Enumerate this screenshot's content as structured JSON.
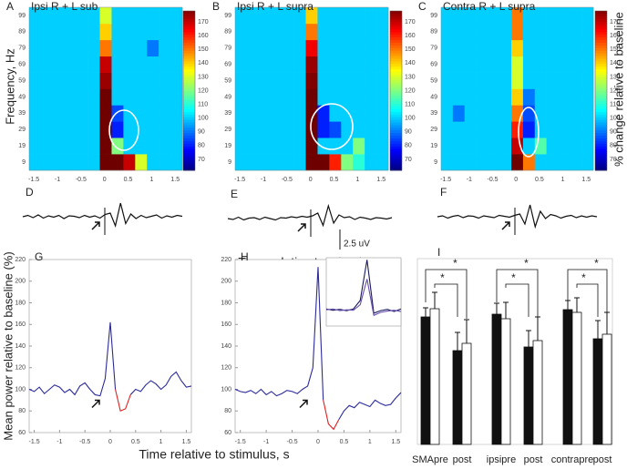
{
  "chart_data": [
    {
      "type": "heatmap",
      "panel": "A",
      "title": "Ipsi R + L sub",
      "y_label": "Frequency, Hz",
      "x_edges": [
        -1.6,
        -1.35,
        -1.1,
        -0.85,
        -0.6,
        -0.35,
        -0.1,
        0.15,
        0.4,
        0.65,
        0.9,
        1.15,
        1.4,
        1.65
      ],
      "y_edges": [
        4,
        14,
        24,
        34,
        44,
        54,
        64,
        74,
        84,
        94,
        104
      ],
      "xlim": [
        -1.6,
        1.65
      ],
      "ylim": [
        4,
        104
      ],
      "xticks": [
        -1.5,
        -1,
        -0.5,
        0,
        0.5,
        1,
        1.5
      ],
      "yticks": [
        9,
        19,
        29,
        39,
        49,
        59,
        69,
        79,
        89,
        99
      ],
      "zlim": [
        62,
        178
      ],
      "colorbar_ticks": [
        70,
        80,
        90,
        100,
        110,
        120,
        130,
        140,
        150,
        160,
        170
      ],
      "z": [
        [
          100,
          100,
          100,
          100,
          100,
          100,
          180,
          180,
          170,
          130,
          100,
          100,
          100
        ],
        [
          100,
          100,
          100,
          100,
          100,
          100,
          180,
          120,
          100,
          100,
          100,
          100,
          100
        ],
        [
          100,
          100,
          100,
          100,
          100,
          100,
          180,
          80,
          100,
          100,
          100,
          100,
          100
        ],
        [
          100,
          100,
          100,
          100,
          100,
          100,
          180,
          85,
          100,
          100,
          100,
          100,
          100
        ],
        [
          100,
          100,
          100,
          100,
          100,
          100,
          180,
          100,
          100,
          100,
          100,
          100,
          100
        ],
        [
          100,
          100,
          100,
          100,
          100,
          100,
          175,
          100,
          100,
          100,
          100,
          100,
          100
        ],
        [
          100,
          100,
          100,
          100,
          100,
          100,
          170,
          100,
          100,
          100,
          100,
          100,
          100
        ],
        [
          100,
          100,
          100,
          100,
          100,
          100,
          150,
          100,
          100,
          100,
          90,
          100,
          100
        ],
        [
          100,
          100,
          100,
          100,
          100,
          100,
          140,
          100,
          100,
          100,
          100,
          100,
          100
        ],
        [
          100,
          100,
          100,
          100,
          100,
          100,
          130,
          100,
          100,
          100,
          100,
          100,
          100
        ]
      ]
    },
    {
      "type": "heatmap",
      "panel": "B",
      "title": "Ipsi R + L supra",
      "x_edges": [
        -1.6,
        -1.35,
        -1.1,
        -0.85,
        -0.6,
        -0.35,
        -0.1,
        0.15,
        0.4,
        0.65,
        0.9,
        1.15,
        1.4,
        1.65
      ],
      "y_edges": [
        4,
        14,
        24,
        34,
        44,
        54,
        64,
        74,
        84,
        94,
        104
      ],
      "xlim": [
        -1.6,
        1.65
      ],
      "ylim": [
        4,
        104
      ],
      "xticks": [
        -1.5,
        -1,
        -0.5,
        0,
        0.5,
        1,
        1.5
      ],
      "yticks": [
        9,
        19,
        29,
        39,
        49,
        59,
        69,
        79,
        89,
        99
      ],
      "zlim": [
        62,
        178
      ],
      "colorbar_ticks": [
        70,
        80,
        90,
        100,
        110,
        120,
        130,
        140,
        150,
        160,
        170
      ],
      "z": [
        [
          100,
          100,
          100,
          100,
          100,
          100,
          180,
          180,
          160,
          120,
          110,
          100,
          100
        ],
        [
          100,
          100,
          100,
          100,
          100,
          100,
          180,
          100,
          100,
          100,
          120,
          100,
          100
        ],
        [
          100,
          100,
          100,
          100,
          100,
          100,
          180,
          80,
          85,
          100,
          100,
          100,
          100
        ],
        [
          100,
          100,
          100,
          100,
          100,
          100,
          180,
          80,
          100,
          100,
          100,
          100,
          100
        ],
        [
          100,
          100,
          100,
          100,
          100,
          100,
          180,
          100,
          100,
          100,
          100,
          100,
          100
        ],
        [
          100,
          100,
          100,
          100,
          100,
          100,
          178,
          100,
          100,
          100,
          100,
          100,
          100
        ],
        [
          100,
          100,
          100,
          100,
          100,
          100,
          175,
          100,
          100,
          100,
          100,
          100,
          100
        ],
        [
          100,
          100,
          100,
          100,
          100,
          100,
          165,
          100,
          100,
          100,
          100,
          100,
          100
        ],
        [
          100,
          100,
          100,
          100,
          100,
          100,
          150,
          100,
          100,
          100,
          100,
          100,
          100
        ],
        [
          100,
          100,
          100,
          100,
          100,
          100,
          140,
          100,
          100,
          100,
          100,
          100,
          100
        ]
      ]
    },
    {
      "type": "heatmap",
      "panel": "C",
      "title": "Contra R + L supra",
      "colorbar_label": "% change relative to baseline",
      "x_edges": [
        -1.6,
        -1.35,
        -1.1,
        -0.85,
        -0.6,
        -0.35,
        -0.1,
        0.15,
        0.4,
        0.65,
        0.9,
        1.15,
        1.4,
        1.65
      ],
      "y_edges": [
        4,
        14,
        24,
        34,
        44,
        54,
        64,
        74,
        84,
        94,
        104
      ],
      "xlim": [
        -1.6,
        1.65
      ],
      "ylim": [
        4,
        104
      ],
      "xticks": [
        -1.5,
        -1,
        -0.5,
        0,
        0.5,
        1,
        1.5
      ],
      "yticks": [
        9,
        19,
        29,
        39,
        49,
        59,
        69,
        79,
        89,
        99
      ],
      "zlim": [
        62,
        178
      ],
      "colorbar_ticks": [
        70,
        80,
        90,
        100,
        110,
        120,
        130,
        140,
        150,
        160,
        170
      ],
      "z": [
        [
          100,
          100,
          100,
          100,
          100,
          100,
          180,
          150,
          100,
          100,
          100,
          100,
          100
        ],
        [
          100,
          100,
          100,
          100,
          100,
          100,
          170,
          100,
          115,
          100,
          100,
          100,
          100
        ],
        [
          100,
          100,
          100,
          100,
          100,
          100,
          160,
          80,
          100,
          100,
          100,
          100,
          100
        ],
        [
          100,
          90,
          100,
          100,
          100,
          100,
          150,
          85,
          100,
          100,
          100,
          100,
          100
        ],
        [
          100,
          100,
          100,
          100,
          100,
          100,
          140,
          90,
          100,
          100,
          100,
          100,
          100
        ],
        [
          100,
          100,
          100,
          100,
          100,
          100,
          130,
          100,
          100,
          100,
          100,
          100,
          100
        ],
        [
          100,
          100,
          100,
          100,
          100,
          100,
          130,
          100,
          100,
          100,
          100,
          100,
          100
        ],
        [
          100,
          100,
          100,
          100,
          100,
          100,
          140,
          100,
          100,
          100,
          100,
          100,
          100
        ],
        [
          100,
          100,
          100,
          100,
          100,
          100,
          150,
          100,
          100,
          100,
          100,
          100,
          100
        ],
        [
          100,
          100,
          100,
          100,
          100,
          100,
          150,
          100,
          100,
          100,
          100,
          100,
          100
        ]
      ]
    },
    {
      "type": "trace",
      "panel": "D",
      "ylim": [
        -5,
        5
      ],
      "values": [
        0,
        0.3,
        -0.2,
        0.4,
        -0.3,
        0.2,
        -0.1,
        0.3,
        -0.4,
        0.2,
        0.1,
        -0.2,
        0.3,
        -0.1,
        0.2,
        -0.3,
        0.5,
        0.8,
        -2,
        3,
        -1.5,
        0.6,
        -0.4,
        0.3,
        -0.2,
        0.1,
        0.4,
        -0.3,
        0.2,
        -0.1,
        0.3,
        0.1
      ]
    },
    {
      "type": "trace",
      "panel": "E",
      "ylim": [
        -5,
        5
      ],
      "scale_label": "2.5 uV",
      "x_label": "Time relative to stimulus, s",
      "values": [
        0,
        -0.2,
        0.3,
        -0.3,
        0.1,
        0.2,
        -0.2,
        0.3,
        0,
        -0.3,
        0.2,
        0.1,
        0.4,
        0.2,
        0.5,
        0.3,
        0.6,
        1.2,
        -1.5,
        2.8,
        -1,
        0.8,
        0.2,
        0.4,
        -0.2,
        0.3,
        0.1,
        -0.2,
        0.2,
        0.1,
        -0.1,
        0.2
      ]
    },
    {
      "type": "trace",
      "panel": "F",
      "ylim": [
        -5,
        5
      ],
      "values": [
        0,
        0.2,
        -0.3,
        0.1,
        0.3,
        -0.2,
        0.2,
        0.1,
        -0.3,
        0.2,
        0,
        -0.2,
        0.3,
        0.1,
        -0.1,
        0.3,
        0.6,
        -1.6,
        2.6,
        -2.2,
        1.2,
        -0.4,
        0.5,
        0.2,
        -0.3,
        0.1,
        0.3,
        -0.2,
        0.2,
        -0.1,
        0.2,
        0
      ]
    },
    {
      "type": "line",
      "panel": "G",
      "y_label": "Mean power relative to baseline (%)",
      "x_label": "Time relative to stimulus, s",
      "xlim": [
        -1.6,
        1.6
      ],
      "ylim": [
        60,
        220
      ],
      "xticks": [
        -1.5,
        -1,
        -0.5,
        0,
        0.5,
        1,
        1.5
      ],
      "yticks": [
        60,
        80,
        100,
        120,
        140,
        160,
        180,
        200,
        220
      ],
      "x": [
        -1.6,
        -1.5,
        -1.4,
        -1.3,
        -1.2,
        -1.1,
        -1.0,
        -0.9,
        -0.8,
        -0.7,
        -0.6,
        -0.5,
        -0.4,
        -0.3,
        -0.2,
        -0.1,
        0.0,
        0.1,
        0.2,
        0.3,
        0.4,
        0.5,
        0.6,
        0.7,
        0.8,
        0.9,
        1.0,
        1.1,
        1.2,
        1.3,
        1.4,
        1.5,
        1.6
      ],
      "series": [
        {
          "color": "#2b2b9a",
          "values": [
            100,
            98,
            102,
            96,
            100,
            104,
            102,
            97,
            100,
            95,
            103,
            106,
            100,
            95,
            94,
            110,
            162,
            100,
            null,
            null,
            95,
            100,
            98,
            104,
            108,
            105,
            100,
            104,
            112,
            116,
            108,
            102,
            103
          ]
        },
        {
          "color": "#e02020",
          "values": [
            null,
            null,
            null,
            null,
            null,
            null,
            null,
            null,
            null,
            null,
            null,
            null,
            null,
            null,
            null,
            null,
            null,
            100,
            80,
            82,
            95,
            null,
            null,
            null,
            null,
            null,
            null,
            null,
            null,
            null,
            null,
            null,
            null
          ]
        }
      ]
    },
    {
      "type": "line",
      "panel": "H",
      "xlim": [
        -1.6,
        1.6
      ],
      "ylim": [
        60,
        220
      ],
      "xticks": [
        -1.5,
        -1,
        -0.5,
        0,
        0.5,
        1,
        1.5
      ],
      "yticks": [
        60,
        80,
        100,
        120,
        140,
        160,
        180,
        200,
        220
      ],
      "x": [
        -1.6,
        -1.5,
        -1.4,
        -1.3,
        -1.2,
        -1.1,
        -1.0,
        -0.9,
        -0.8,
        -0.7,
        -0.6,
        -0.5,
        -0.4,
        -0.3,
        -0.2,
        -0.1,
        0.0,
        0.1,
        0.2,
        0.3,
        0.4,
        0.5,
        0.6,
        0.7,
        0.8,
        0.9,
        1.0,
        1.1,
        1.2,
        1.3,
        1.4,
        1.5,
        1.6
      ],
      "series": [
        {
          "color": "#2b2b9a",
          "values": [
            100,
            98,
            97,
            99,
            96,
            100,
            95,
            98,
            94,
            96,
            99,
            98,
            96,
            100,
            103,
            120,
            213,
            90,
            null,
            null,
            72,
            80,
            85,
            83,
            88,
            86,
            84,
            90,
            87,
            85,
            86,
            92,
            97
          ]
        },
        {
          "color": "#e02020",
          "values": [
            null,
            null,
            null,
            null,
            null,
            null,
            null,
            null,
            null,
            null,
            null,
            null,
            null,
            null,
            null,
            null,
            null,
            90,
            68,
            63,
            72,
            null,
            null,
            null,
            null,
            null,
            null,
            null,
            null,
            null,
            null,
            null,
            null
          ]
        }
      ]
    },
    {
      "type": "line",
      "inset": true,
      "xlim": [
        0,
        11
      ],
      "ylim": [
        60,
        220
      ],
      "x": [
        0,
        1,
        2,
        3,
        4,
        5,
        6,
        7,
        8,
        9,
        10,
        11
      ],
      "series": [
        {
          "color": "#1a1a5e",
          "values": [
            100,
            97,
            99,
            96,
            100,
            120,
            215,
            90,
            96,
            99,
            94,
            100
          ]
        },
        {
          "color": "#6a4fb0",
          "values": [
            98,
            100,
            96,
            98,
            97,
            110,
            170,
            85,
            92,
            95,
            97,
            94
          ]
        }
      ]
    },
    {
      "type": "bar",
      "panel": "I",
      "ylim": [
        0,
        100
      ],
      "categories": [
        "SMApre",
        "post",
        "ipsipre",
        "post",
        "contrapre",
        "post"
      ],
      "series": [
        {
          "color": "#111111",
          "values": [
            70,
            51.5,
            71.5,
            53.5,
            74,
            58
          ],
          "errors": [
            5,
            10,
            6,
            9,
            5,
            10
          ]
        },
        {
          "color": "#ffffff",
          "values": [
            74.5,
            55.5,
            69,
            57,
            72.5,
            60.5
          ],
          "errors": [
            9,
            13,
            9,
            13,
            8,
            12
          ]
        }
      ],
      "annotations": [
        "*",
        "*",
        "*",
        "*",
        "*",
        "*"
      ]
    }
  ]
}
